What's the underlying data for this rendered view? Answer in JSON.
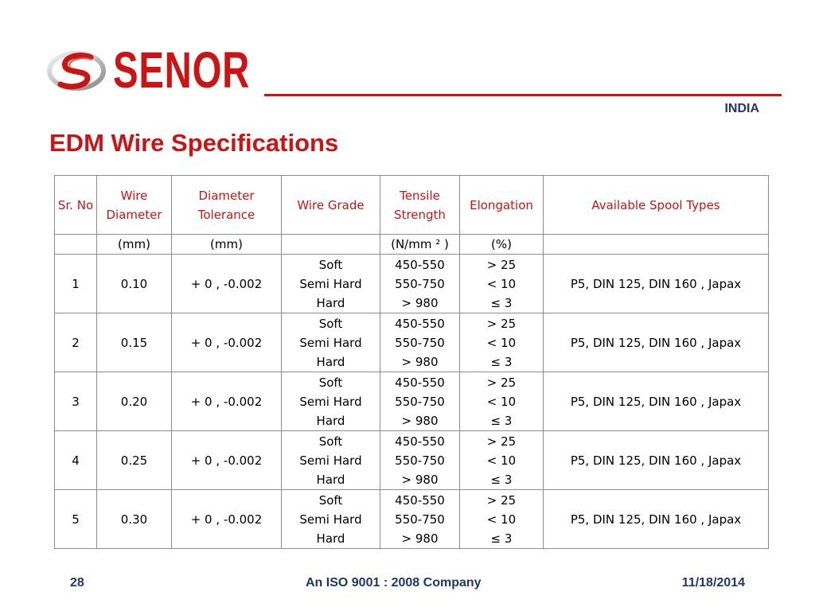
{
  "header": {
    "brand": "SENOR",
    "country": "INDIA",
    "title": "EDM Wire Specifications",
    "accent_color": "#cc1414",
    "text_color": "#1f3864"
  },
  "table": {
    "headers": [
      "Sr. No",
      "Wire Diameter",
      "Diameter Tolerance",
      "Wire Grade",
      "Tensile Strength",
      "Elongation",
      "Available Spool Types"
    ],
    "units": [
      "",
      "(mm)",
      "(mm)",
      "",
      "(N/mm ² )",
      "(%)",
      ""
    ],
    "rows": [
      {
        "sr": "1",
        "diameter": "0.10",
        "tolerance": "+ 0 , -0.002",
        "grades": [
          "Soft",
          "Semi Hard",
          "Hard"
        ],
        "tensile": [
          "450-550",
          "550-750",
          "> 980"
        ],
        "elongation": [
          "> 25",
          "< 10",
          "≤   3"
        ],
        "spools": "P5, DIN 125, DIN 160 , Japax"
      },
      {
        "sr": "2",
        "diameter": "0.15",
        "tolerance": "+ 0 , -0.002",
        "grades": [
          "Soft",
          "Semi Hard",
          "Hard"
        ],
        "tensile": [
          "450-550",
          "550-750",
          "> 980"
        ],
        "elongation": [
          "> 25",
          "< 10",
          "≤   3"
        ],
        "spools": "P5, DIN 125, DIN 160 , Japax"
      },
      {
        "sr": "3",
        "diameter": "0.20",
        "tolerance": "+ 0 , -0.002",
        "grades": [
          "Soft",
          "Semi Hard",
          "Hard"
        ],
        "tensile": [
          "450-550",
          "550-750",
          "> 980"
        ],
        "elongation": [
          "> 25",
          "< 10",
          "≤   3"
        ],
        "spools": "P5, DIN 125, DIN 160 , Japax"
      },
      {
        "sr": "4",
        "diameter": "0.25",
        "tolerance": "+ 0 , -0.002",
        "grades": [
          "Soft",
          "Semi Hard",
          "Hard"
        ],
        "tensile": [
          "450-550",
          "550-750",
          "> 980"
        ],
        "elongation": [
          "> 25",
          "< 10",
          "≤   3"
        ],
        "spools": "P5, DIN 125, DIN 160 , Japax"
      },
      {
        "sr": "5",
        "diameter": "0.30",
        "tolerance": "+ 0 , -0.002",
        "grades": [
          "Soft",
          "Semi Hard",
          "Hard"
        ],
        "tensile": [
          "450-550",
          "550-750",
          "> 980"
        ],
        "elongation": [
          "> 25",
          "< 10",
          "≤   3"
        ],
        "spools": "P5, DIN 125, DIN 160 , Japax"
      }
    ]
  },
  "footer": {
    "page_number": "28",
    "tagline": "An ISO 9001 : 2008 Company",
    "date": "11/18/2014"
  }
}
